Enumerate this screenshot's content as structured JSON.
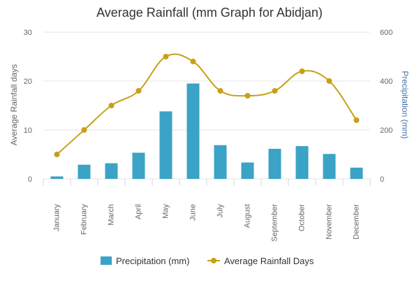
{
  "chart_data": {
    "type": "bar",
    "title": "Average Rainfall (mm Graph for Abidjan)",
    "categories": [
      "January",
      "February",
      "March",
      "April",
      "May",
      "June",
      "July",
      "August",
      "September",
      "October",
      "November",
      "December"
    ],
    "series": [
      {
        "name": "Precipitation (mm)",
        "type": "bar",
        "axis": "right",
        "color": "#3ba3c5",
        "values": [
          10,
          58,
          64,
          107,
          276,
          390,
          138,
          67,
          123,
          134,
          102,
          46
        ]
      },
      {
        "name": "Average Rainfall Days",
        "type": "line",
        "axis": "left",
        "color": "#c9a015",
        "values": [
          5,
          10,
          15,
          18,
          25,
          24,
          18,
          17,
          18,
          22,
          20,
          12
        ]
      }
    ],
    "y_left": {
      "label": "Average Rainfall days",
      "min": 0,
      "max": 30,
      "ticks": [
        "0",
        "10",
        "20",
        "30"
      ]
    },
    "y_right": {
      "label": "Precipitation (mm)",
      "min": 0,
      "max": 600,
      "ticks": [
        "0",
        "200",
        "400",
        "600"
      ]
    },
    "grid": true,
    "legend_position": "bottom-center"
  }
}
